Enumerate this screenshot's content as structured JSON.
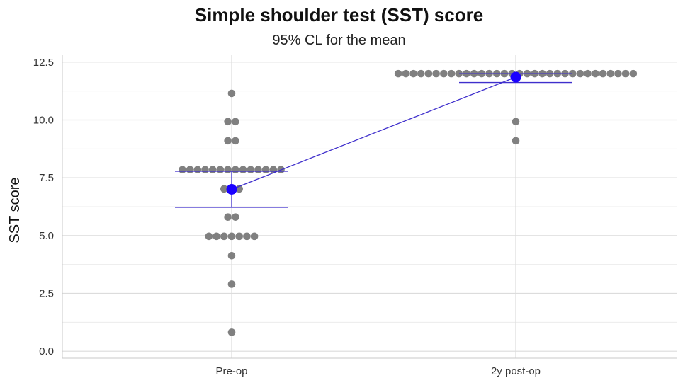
{
  "chart_data": {
    "type": "scatter",
    "title": "Simple shoulder test (SST) score",
    "subtitle": "95% CL for the mean",
    "xlabel": "",
    "ylabel": "SST score",
    "categories": [
      "Pre-op",
      "2y post-op"
    ],
    "ylim": [
      -0.3,
      12.8
    ],
    "yticks": [
      0.0,
      2.5,
      5.0,
      7.5,
      10.0,
      12.5
    ],
    "ytick_labels": [
      "0.0",
      "2.5",
      "5.0",
      "7.5",
      "10.0",
      "12.5"
    ],
    "grid": true,
    "groups": [
      {
        "category": "Pre-op",
        "stacks": [
          {
            "value": 11.15,
            "count": 1
          },
          {
            "value": 9.93,
            "count": 2
          },
          {
            "value": 9.1,
            "count": 2
          },
          {
            "value": 7.85,
            "count": 14
          },
          {
            "value": 7.02,
            "count": 3
          },
          {
            "value": 5.8,
            "count": 2
          },
          {
            "value": 4.97,
            "count": 7
          },
          {
            "value": 4.13,
            "count": 1
          },
          {
            "value": 2.9,
            "count": 1
          },
          {
            "value": 0.82,
            "count": 1
          }
        ],
        "mean": 7.0,
        "ci_lower": 6.22,
        "ci_upper": 7.78
      },
      {
        "category": "2y post-op",
        "stacks": [
          {
            "value": 12.0,
            "count": 32
          },
          {
            "value": 9.93,
            "count": 1
          },
          {
            "value": 9.1,
            "count": 1
          }
        ],
        "mean": 11.85,
        "ci_lower": 11.62,
        "ci_upper": 12.0
      }
    ],
    "colors": {
      "points": "#808080",
      "mean": "#1a00ff",
      "line": "#3f2fcc",
      "grid": "#dcdcdc"
    }
  }
}
